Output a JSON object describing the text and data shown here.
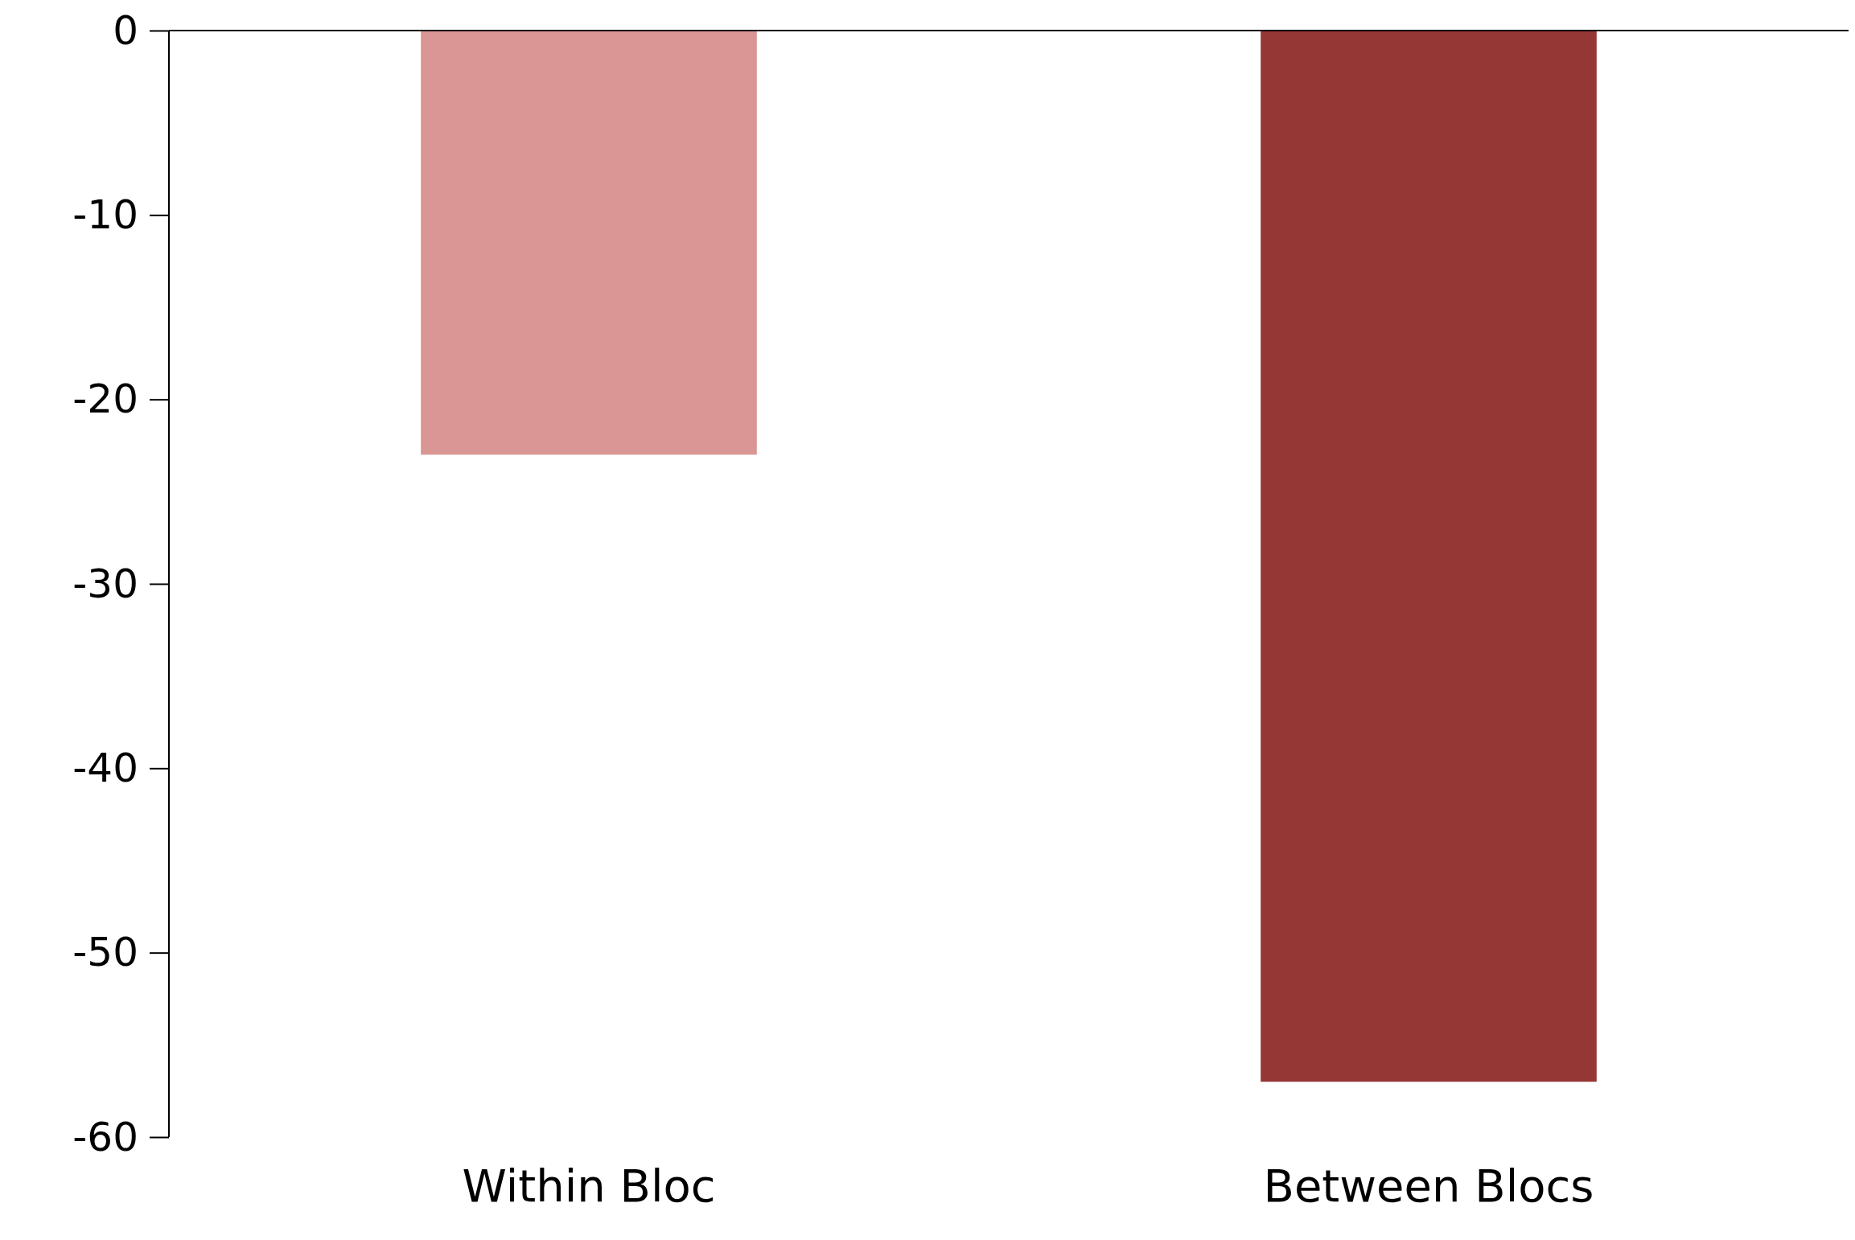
{
  "chart_data": {
    "type": "bar",
    "categories": [
      "Within Bloc",
      "Between Blocs"
    ],
    "values": [
      -23,
      -57
    ],
    "colors": [
      "#da9694",
      "#953735"
    ],
    "ylim": [
      -60,
      0
    ],
    "yticks": [
      0,
      -10,
      -20,
      -30,
      -40,
      -50,
      -60
    ],
    "grid": false
  }
}
